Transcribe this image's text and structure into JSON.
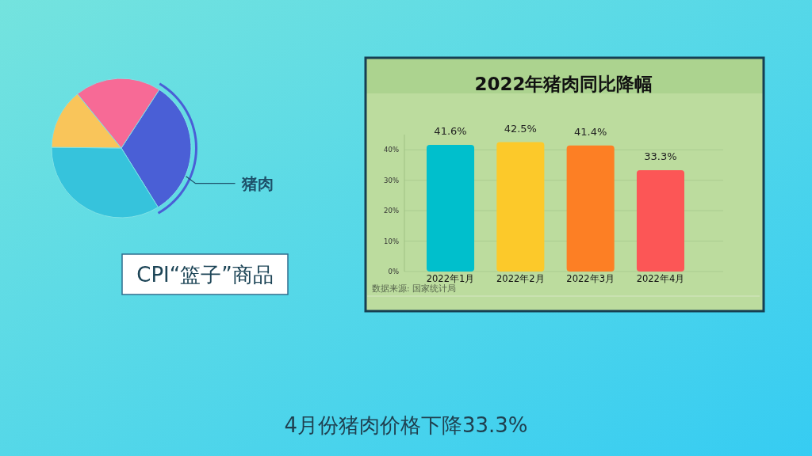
{
  "chart_data": [
    {
      "type": "pie",
      "title": "CPI“篮子”商品",
      "categories": [
        "猪肉",
        null,
        null,
        null
      ],
      "values": [
        32,
        34,
        14,
        20
      ],
      "colors": [
        "#4a5fd6",
        "#36c3dc",
        "#f9c55a",
        "#f76a96"
      ]
    },
    {
      "type": "bar",
      "title": "2022年猪肉同比降幅",
      "categories": [
        "2022年1月",
        "2022年2月",
        "2022年3月",
        "2022年4月"
      ],
      "values": [
        41.6,
        42.5,
        41.4,
        33.3
      ],
      "colors": [
        "#00bfcc",
        "#fcc92a",
        "#fd7f24",
        "#fc5656"
      ],
      "value_labels": [
        "41.6%",
        "42.5%",
        "41.4%",
        "33.3%"
      ],
      "ylim": [
        0,
        45
      ],
      "yticks": [
        {
          "value": 0,
          "label": "0%"
        },
        {
          "value": 10,
          "label": "10%"
        },
        {
          "value": 20,
          "label": "20%"
        },
        {
          "value": 30,
          "label": "30%"
        },
        {
          "value": 40,
          "label": "40%"
        }
      ],
      "grid": "y",
      "annotations": [
        "数据来源: 国家统计局",
        "4月份猪肉价格下降33.3%"
      ]
    }
  ]
}
